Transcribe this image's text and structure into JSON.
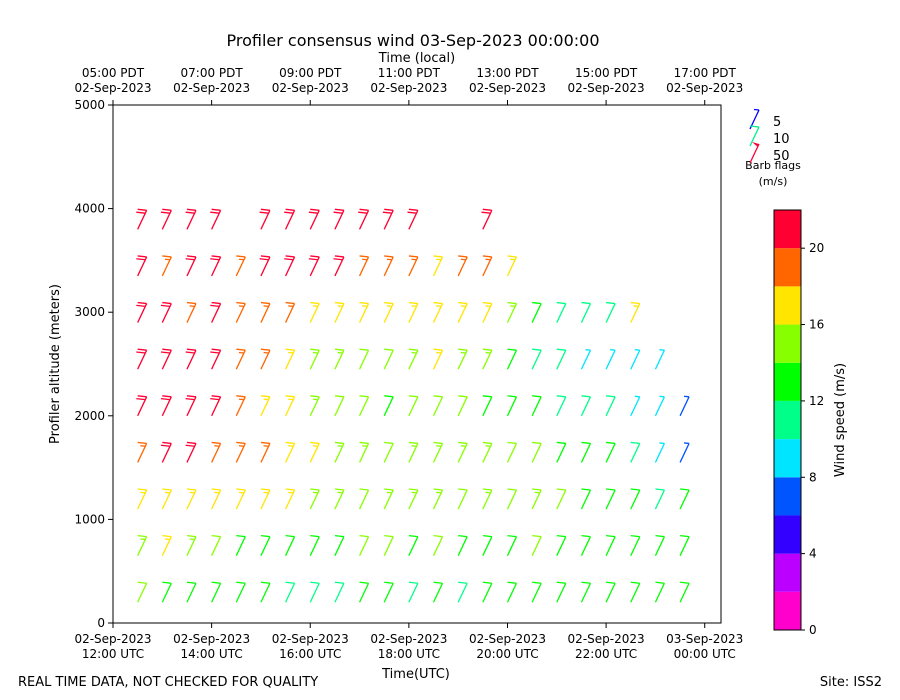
{
  "chart_data": {
    "type": "barbs",
    "title": "Profiler consensus wind 03-Sep-2023 00:00:00",
    "x2_label": "Time (local)",
    "x_label": "Time(UTC)",
    "y_label": "Profiler altitude (meters)",
    "xlim": [
      12,
      24.33
    ],
    "ylim": [
      0,
      5000
    ],
    "yticks": [
      0,
      1000,
      2000,
      3000,
      4000,
      5000
    ],
    "xticks": [
      {
        "value": 12,
        "label": [
          "02-Sep-2023",
          "12:00 UTC"
        ]
      },
      {
        "value": 14,
        "label": [
          "02-Sep-2023",
          "14:00 UTC"
        ]
      },
      {
        "value": 16,
        "label": [
          "02-Sep-2023",
          "16:00 UTC"
        ]
      },
      {
        "value": 18,
        "label": [
          "02-Sep-2023",
          "18:00 UTC"
        ]
      },
      {
        "value": 20,
        "label": [
          "02-Sep-2023",
          "20:00 UTC"
        ]
      },
      {
        "value": 22,
        "label": [
          "02-Sep-2023",
          "22:00 UTC"
        ]
      },
      {
        "value": 24,
        "label": [
          "03-Sep-2023",
          "00:00 UTC"
        ]
      }
    ],
    "x2ticks": [
      {
        "value": 12,
        "label": [
          "05:00 PDT",
          "02-Sep-2023"
        ]
      },
      {
        "value": 14,
        "label": [
          "07:00 PDT",
          "02-Sep-2023"
        ]
      },
      {
        "value": 16,
        "label": [
          "09:00 PDT",
          "02-Sep-2023"
        ]
      },
      {
        "value": 18,
        "label": [
          "11:00 PDT",
          "02-Sep-2023"
        ]
      },
      {
        "value": 20,
        "label": [
          "13:00 PDT",
          "02-Sep-2023"
        ]
      },
      {
        "value": 22,
        "label": [
          "15:00 PDT",
          "02-Sep-2023"
        ]
      },
      {
        "value": 24,
        "label": [
          "17:00 PDT",
          "02-Sep-2023"
        ]
      }
    ],
    "altitudes": [
      200,
      650,
      1100,
      1550,
      2000,
      2450,
      2900,
      3350,
      3800
    ],
    "columns": [
      {
        "x": 12.5,
        "speeds": [
          14,
          15,
          17,
          19,
          21,
          21,
          20,
          21,
          21
        ]
      },
      {
        "x": 13.0,
        "speeds": [
          13,
          16,
          17,
          20,
          21,
          20,
          20,
          19,
          21
        ]
      },
      {
        "x": 13.5,
        "speeds": [
          13,
          15,
          17,
          20,
          21,
          21,
          19,
          20,
          21
        ]
      },
      {
        "x": 14.0,
        "speeds": [
          12,
          14,
          17,
          19,
          21,
          20,
          20,
          21,
          21
        ]
      },
      {
        "x": 14.5,
        "speeds": [
          12,
          13,
          17,
          19,
          19,
          18,
          18,
          19,
          null
        ]
      },
      {
        "x": 15.0,
        "speeds": [
          12,
          13,
          16,
          18,
          17,
          18,
          18,
          20,
          21
        ]
      },
      {
        "x": 15.5,
        "speeds": [
          11,
          12,
          16,
          17,
          16,
          17,
          19,
          21,
          21
        ]
      },
      {
        "x": 16.0,
        "speeds": [
          10,
          13,
          15,
          16,
          15,
          15,
          17,
          20,
          21
        ]
      },
      {
        "x": 16.5,
        "speeds": [
          11,
          13,
          15,
          15,
          14,
          15,
          17,
          20,
          21
        ]
      },
      {
        "x": 17.0,
        "speeds": [
          12,
          14,
          14,
          15,
          14,
          14,
          16,
          19,
          21
        ]
      },
      {
        "x": 17.5,
        "speeds": [
          12,
          14,
          15,
          14,
          13,
          14,
          16,
          19,
          21
        ]
      },
      {
        "x": 18.0,
        "speeds": [
          11,
          13,
          15,
          15,
          14,
          15,
          17,
          19,
          20
        ]
      },
      {
        "x": 18.5,
        "speeds": [
          12,
          14,
          15,
          15,
          14,
          16,
          16,
          17,
          null
        ]
      },
      {
        "x": 19.0,
        "speeds": [
          11,
          13,
          14,
          15,
          14,
          15,
          17,
          19,
          null
        ]
      },
      {
        "x": 19.5,
        "speeds": [
          12,
          13,
          15,
          15,
          13,
          15,
          17,
          19,
          21
        ]
      },
      {
        "x": 20.0,
        "speeds": [
          12,
          13,
          14,
          14,
          13,
          13,
          15,
          17,
          null
        ]
      },
      {
        "x": 20.5,
        "speeds": [
          13,
          14,
          15,
          14,
          12,
          11,
          12,
          null,
          null
        ]
      },
      {
        "x": 21.0,
        "speeds": [
          13,
          13,
          14,
          13,
          11,
          10,
          11,
          null,
          null
        ]
      },
      {
        "x": 21.5,
        "speeds": [
          13,
          13,
          13,
          12,
          10,
          9,
          10,
          null,
          null
        ]
      },
      {
        "x": 22.0,
        "speeds": [
          13,
          13,
          13,
          12,
          10,
          9,
          11,
          null,
          null
        ]
      },
      {
        "x": 22.5,
        "speeds": [
          12,
          12,
          12,
          10,
          9,
          9,
          17,
          null,
          null
        ]
      },
      {
        "x": 23.0,
        "speeds": [
          13,
          12,
          11,
          9,
          8,
          8,
          null,
          null,
          null
        ]
      },
      {
        "x": 23.5,
        "speeds": [
          13,
          13,
          12,
          7,
          7,
          null,
          null,
          null,
          null
        ]
      }
    ],
    "colorbar": {
      "label": "Wind speed (m/s)",
      "lim": [
        0,
        22
      ],
      "ticks": [
        0,
        4,
        8,
        12,
        16,
        20
      ],
      "bounds": [
        0,
        2,
        4,
        6,
        8,
        10,
        12,
        14,
        16,
        18,
        20,
        22
      ],
      "colors": [
        "#ff00cc",
        "#bb00ff",
        "#3300ff",
        "#0055ff",
        "#00e5ff",
        "#00ff88",
        "#00ff00",
        "#88ff00",
        "#ffe500",
        "#ff6600",
        "#ff0033"
      ]
    },
    "legend": {
      "title": [
        "Barb flags",
        "(m/s)"
      ],
      "items": [
        {
          "label": 5,
          "color": "#0000ff"
        },
        {
          "label": 10,
          "color": "#00ee88"
        },
        {
          "label": 50,
          "color": "#ff0033"
        }
      ]
    },
    "footer_left": "REAL TIME DATA, NOT CHECKED FOR QUALITY",
    "footer_right": "Site: ISS2"
  }
}
